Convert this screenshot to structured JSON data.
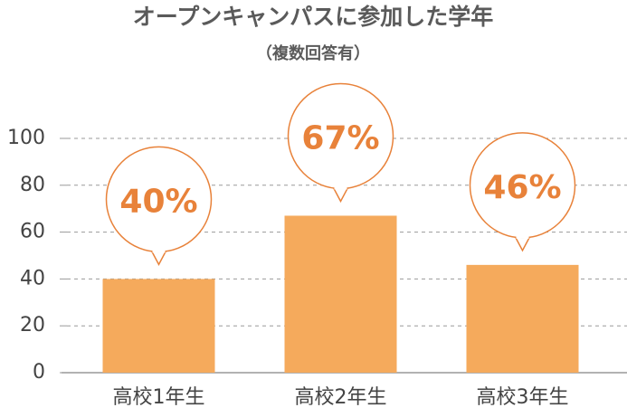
{
  "chart_data": {
    "type": "bar",
    "title": "オープンキャンパスに参加した学年",
    "subtitle": "（複数回答有）",
    "categories": [
      "高校1年生",
      "高校2年生",
      "高校3年生"
    ],
    "values": [
      40,
      67,
      46
    ],
    "value_labels": [
      "40%",
      "67%",
      "46%"
    ],
    "color": "#f5aa5c",
    "ylim": [
      0,
      100
    ],
    "yticks": [
      0,
      20,
      40,
      60,
      80,
      100
    ],
    "grid": true
  }
}
